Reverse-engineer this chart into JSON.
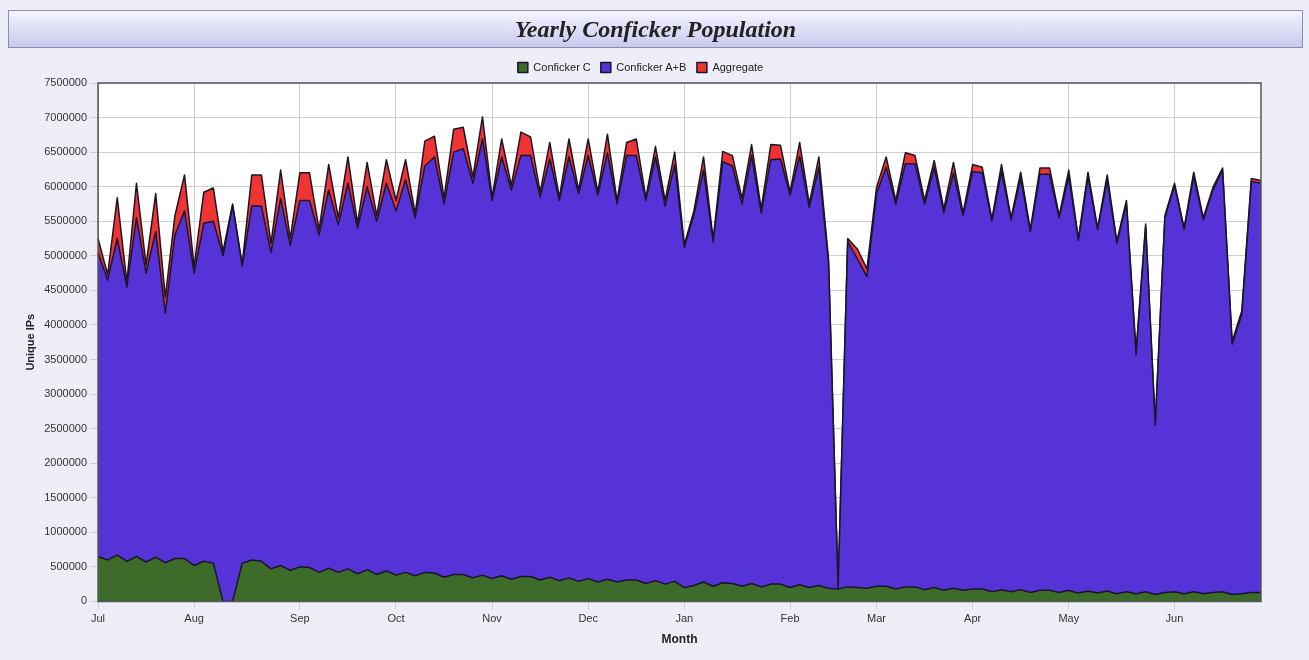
{
  "chart_data": {
    "type": "area",
    "title": "Yearly Conficker Population",
    "xlabel": "Month",
    "ylabel": "Unique IPs",
    "categories": [
      "Jul",
      null,
      null,
      null,
      null,
      null,
      null,
      null,
      null,
      null,
      "Aug",
      null,
      null,
      null,
      null,
      null,
      null,
      null,
      null,
      null,
      null,
      "Sep",
      null,
      null,
      null,
      null,
      null,
      null,
      null,
      null,
      null,
      "Oct",
      null,
      null,
      null,
      null,
      null,
      null,
      null,
      null,
      null,
      "Nov",
      null,
      null,
      null,
      null,
      null,
      null,
      null,
      null,
      null,
      "Dec",
      null,
      null,
      null,
      null,
      null,
      null,
      null,
      null,
      null,
      "Jan",
      null,
      null,
      null,
      null,
      null,
      null,
      null,
      null,
      null,
      null,
      "Feb",
      null,
      null,
      null,
      null,
      null,
      null,
      null,
      null,
      "Mar",
      null,
      null,
      null,
      null,
      null,
      null,
      null,
      null,
      null,
      "Apr",
      null,
      null,
      null,
      null,
      null,
      null,
      null,
      null,
      null,
      "May",
      null,
      null,
      null,
      null,
      null,
      null,
      null,
      null,
      null,
      null,
      "Jun",
      null,
      null,
      null,
      null,
      null,
      null,
      null,
      null,
      null
    ],
    "series": [
      {
        "name": "Conficker C",
        "color": "#3d6b2a",
        "values": [
          650000,
          600000,
          670000,
          580000,
          650000,
          570000,
          640000,
          560000,
          620000,
          620000,
          520000,
          580000,
          550000,
          0,
          0,
          550000,
          600000,
          580000,
          470000,
          520000,
          450000,
          500000,
          490000,
          420000,
          480000,
          420000,
          470000,
          400000,
          460000,
          390000,
          440000,
          380000,
          420000,
          370000,
          420000,
          410000,
          350000,
          390000,
          390000,
          340000,
          380000,
          330000,
          370000,
          320000,
          360000,
          360000,
          310000,
          350000,
          300000,
          340000,
          290000,
          330000,
          280000,
          320000,
          280000,
          310000,
          310000,
          260000,
          300000,
          250000,
          290000,
          200000,
          230000,
          280000,
          220000,
          270000,
          260000,
          220000,
          260000,
          210000,
          250000,
          250000,
          200000,
          240000,
          200000,
          230000,
          190000,
          180000,
          210000,
          200000,
          190000,
          220000,
          220000,
          180000,
          210000,
          210000,
          170000,
          200000,
          160000,
          190000,
          160000,
          180000,
          180000,
          140000,
          170000,
          140000,
          170000,
          130000,
          160000,
          160000,
          130000,
          160000,
          120000,
          150000,
          120000,
          150000,
          110000,
          140000,
          110000,
          140000,
          100000,
          130000,
          140000,
          110000,
          140000,
          110000,
          130000,
          140000,
          100000,
          110000,
          130000,
          130000
        ]
      },
      {
        "name": "Conficker A+B",
        "color": "#5533d6",
        "values": [
          5050000,
          4650000,
          5250000,
          4550000,
          5550000,
          4750000,
          5350000,
          4170000,
          5300000,
          5650000,
          4750000,
          5470000,
          5500000,
          5000000,
          5720000,
          4850000,
          5720000,
          5720000,
          5050000,
          5830000,
          5150000,
          5800000,
          5800000,
          5300000,
          5950000,
          5450000,
          6050000,
          5400000,
          6000000,
          5500000,
          6050000,
          5650000,
          6100000,
          5550000,
          6300000,
          6430000,
          5750000,
          6500000,
          6550000,
          6050000,
          6690000,
          5800000,
          6430000,
          5950000,
          6450000,
          6450000,
          5850000,
          6400000,
          5800000,
          6430000,
          5900000,
          6450000,
          5880000,
          6490000,
          5750000,
          6450000,
          6450000,
          5800000,
          6430000,
          5720000,
          6320000,
          5120000,
          5600000,
          6240000,
          5200000,
          6360000,
          6300000,
          5750000,
          6450000,
          5620000,
          6390000,
          6400000,
          5880000,
          6440000,
          5700000,
          6280000,
          4920000,
          200000,
          5200000,
          4960000,
          4700000,
          5900000,
          6280000,
          5750000,
          6330000,
          6330000,
          5750000,
          6280000,
          5620000,
          6200000,
          5580000,
          6220000,
          6200000,
          5500000,
          6220000,
          5520000,
          6120000,
          5350000,
          6180000,
          6180000,
          5550000,
          6150000,
          5220000,
          6140000,
          5380000,
          6100000,
          5180000,
          5750000,
          3570000,
          5420000,
          2550000,
          5550000,
          6020000,
          5380000,
          6150000,
          5520000,
          5950000,
          6240000,
          3720000,
          4150000,
          6080000,
          6050000
        ]
      },
      {
        "name": "Aggregate",
        "color": "#f03434",
        "values": [
          5250000,
          4730000,
          5840000,
          4620000,
          6050000,
          4870000,
          5900000,
          4400000,
          5580000,
          6170000,
          4840000,
          5920000,
          5980000,
          5060000,
          5750000,
          4880000,
          6170000,
          6170000,
          5180000,
          6240000,
          5250000,
          6200000,
          6200000,
          5380000,
          6320000,
          5550000,
          6430000,
          5470000,
          6350000,
          5580000,
          6390000,
          5800000,
          6390000,
          5610000,
          6660000,
          6730000,
          5840000,
          6830000,
          6860000,
          6140000,
          7010000,
          5840000,
          6690000,
          6020000,
          6790000,
          6720000,
          5920000,
          6640000,
          5840000,
          6690000,
          5950000,
          6690000,
          5920000,
          6760000,
          5800000,
          6640000,
          6690000,
          5840000,
          6580000,
          5800000,
          6500000,
          5160000,
          5650000,
          6430000,
          5240000,
          6510000,
          6450000,
          5830000,
          6610000,
          5680000,
          6610000,
          6600000,
          5920000,
          6640000,
          5750000,
          6430000,
          4960000,
          220000,
          5250000,
          5100000,
          4810000,
          5990000,
          6430000,
          5800000,
          6490000,
          6450000,
          5800000,
          6380000,
          5680000,
          6350000,
          5620000,
          6320000,
          6280000,
          5530000,
          6320000,
          5550000,
          6210000,
          5380000,
          6270000,
          6270000,
          5580000,
          6240000,
          5250000,
          6210000,
          5400000,
          6170000,
          5210000,
          5800000,
          3620000,
          5460000,
          2570000,
          5580000,
          6050000,
          5400000,
          6210000,
          5550000,
          5990000,
          6270000,
          3760000,
          4200000,
          6120000,
          6090000
        ]
      }
    ],
    "ylim": [
      0,
      7500000
    ],
    "yticks": [
      0,
      500000,
      1000000,
      1500000,
      2000000,
      2500000,
      3000000,
      3500000,
      4000000,
      4500000,
      5000000,
      5500000,
      6000000,
      6500000,
      7000000,
      7500000
    ],
    "grid": true,
    "legend": "top"
  }
}
